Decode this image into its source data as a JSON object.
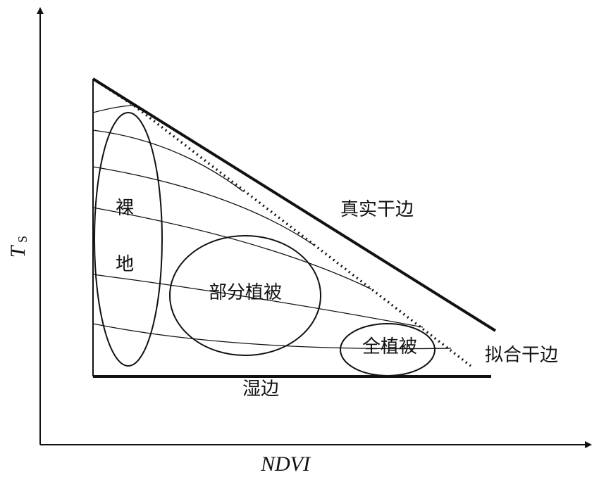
{
  "y_axis": {
    "label": "T",
    "subscript": "S"
  },
  "x_axis": {
    "label": "NDVI"
  },
  "labels": {
    "true_dry_edge": "真实干边",
    "fitted_dry_edge": "拟合干边",
    "wet_edge": "湿边",
    "bare_soil_1": "裸",
    "bare_soil_2": "地",
    "partial_vegetation": "部分植被",
    "full_vegetation": "全植被"
  }
}
